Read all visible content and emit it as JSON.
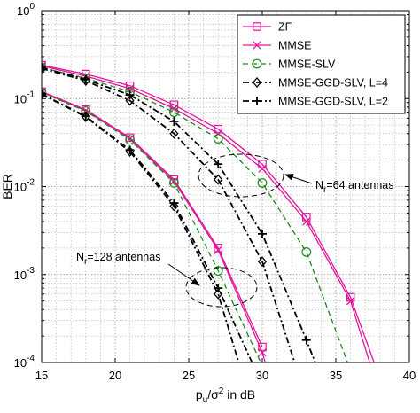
{
  "chart_data": {
    "type": "line",
    "xlabel": "p_u/σ² in dB",
    "ylabel": "BER",
    "xlim": [
      15,
      40
    ],
    "ylim": [
      0.0001,
      1
    ],
    "yscale": "log",
    "grid": true,
    "legend_position": "top-right",
    "xticks": [
      "15",
      "20",
      "25",
      "30",
      "35",
      "40"
    ],
    "yticks": [
      {
        "base": "10",
        "exp": "0"
      },
      {
        "base": "10",
        "exp": "-1"
      },
      {
        "base": "10",
        "exp": "-2"
      },
      {
        "base": "10",
        "exp": "-3"
      },
      {
        "base": "10",
        "exp": "-4"
      }
    ],
    "series": [
      {
        "name": "ZF",
        "color": "#e0169c",
        "style": "solid",
        "marker": "square"
      },
      {
        "name": "MMSE",
        "color": "#e0169c",
        "style": "solid",
        "marker": "x"
      },
      {
        "name": "MMSE-SLV",
        "color": "#1a8a1a",
        "style": "dashed",
        "marker": "circle"
      },
      {
        "name": "MMSE-GGD-SLV, L=4",
        "color": "#000000",
        "style": "dashdot",
        "marker": "diamond"
      },
      {
        "name": "MMSE-GGD-SLV, L=2",
        "color": "#000000",
        "style": "dashdot",
        "marker": "plus"
      }
    ],
    "curves": [
      {
        "group": "64 antennas",
        "series": "ZF",
        "x": [
          15,
          18,
          21,
          24,
          27,
          30,
          33,
          36,
          37.6
        ],
        "y": [
          0.24,
          0.19,
          0.14,
          0.085,
          0.045,
          0.018,
          0.0045,
          0.00055,
          0.0001
        ]
      },
      {
        "group": "64 antennas",
        "series": "MMSE",
        "x": [
          15,
          18,
          21,
          24,
          27,
          30,
          33,
          36,
          37.3
        ],
        "y": [
          0.235,
          0.18,
          0.13,
          0.077,
          0.04,
          0.016,
          0.004,
          0.0005,
          0.0001
        ]
      },
      {
        "group": "64 antennas",
        "series": "MMSE-SLV",
        "x": [
          15,
          18,
          21,
          24,
          27,
          30,
          33,
          35.8
        ],
        "y": [
          0.225,
          0.17,
          0.12,
          0.07,
          0.035,
          0.011,
          0.0018,
          0.0001
        ]
      },
      {
        "group": "64 antennas",
        "series": "MMSE-GGD-SLV, L=4",
        "x": [
          15,
          18,
          21,
          24,
          27,
          30,
          32.2
        ],
        "y": [
          0.22,
          0.16,
          0.095,
          0.04,
          0.012,
          0.0014,
          0.0001
        ]
      },
      {
        "group": "64 antennas",
        "series": "MMSE-GGD-SLV, L=2",
        "x": [
          15,
          18,
          21,
          24,
          27,
          30,
          33,
          33.6
        ],
        "y": [
          0.225,
          0.165,
          0.11,
          0.055,
          0.018,
          0.0029,
          0.00018,
          0.0001
        ]
      },
      {
        "group": "128 antennas",
        "series": "ZF",
        "x": [
          15,
          18,
          21,
          24,
          27,
          30
        ],
        "y": [
          0.12,
          0.075,
          0.036,
          0.012,
          0.002,
          0.00015
        ]
      },
      {
        "group": "128 antennas",
        "series": "MMSE",
        "x": [
          15,
          18,
          21,
          24,
          27,
          30,
          30.2
        ],
        "y": [
          0.118,
          0.073,
          0.035,
          0.0115,
          0.0019,
          0.00013,
          0.0001
        ]
      },
      {
        "group": "128 antennas",
        "series": "MMSE-SLV",
        "x": [
          15,
          18,
          21,
          24,
          27,
          29.9
        ],
        "y": [
          0.117,
          0.072,
          0.034,
          0.011,
          0.0011,
          0.0001
        ]
      },
      {
        "group": "128 antennas",
        "series": "MMSE-GGD-SLV, L=4",
        "x": [
          15,
          18,
          21,
          24,
          27,
          28.4
        ],
        "y": [
          0.112,
          0.062,
          0.025,
          0.006,
          0.0006,
          0.0001
        ]
      },
      {
        "group": "128 antennas",
        "series": "MMSE-GGD-SLV, L=2",
        "x": [
          15,
          18,
          21,
          24,
          27,
          29.3
        ],
        "y": [
          0.113,
          0.063,
          0.026,
          0.0065,
          0.0007,
          0.0001
        ]
      }
    ],
    "annotations": [
      {
        "base": "N",
        "sub": "r",
        "rest": "=64 antennas"
      },
      {
        "base": "N",
        "sub": "r",
        "rest": "=128 antennas"
      }
    ]
  }
}
